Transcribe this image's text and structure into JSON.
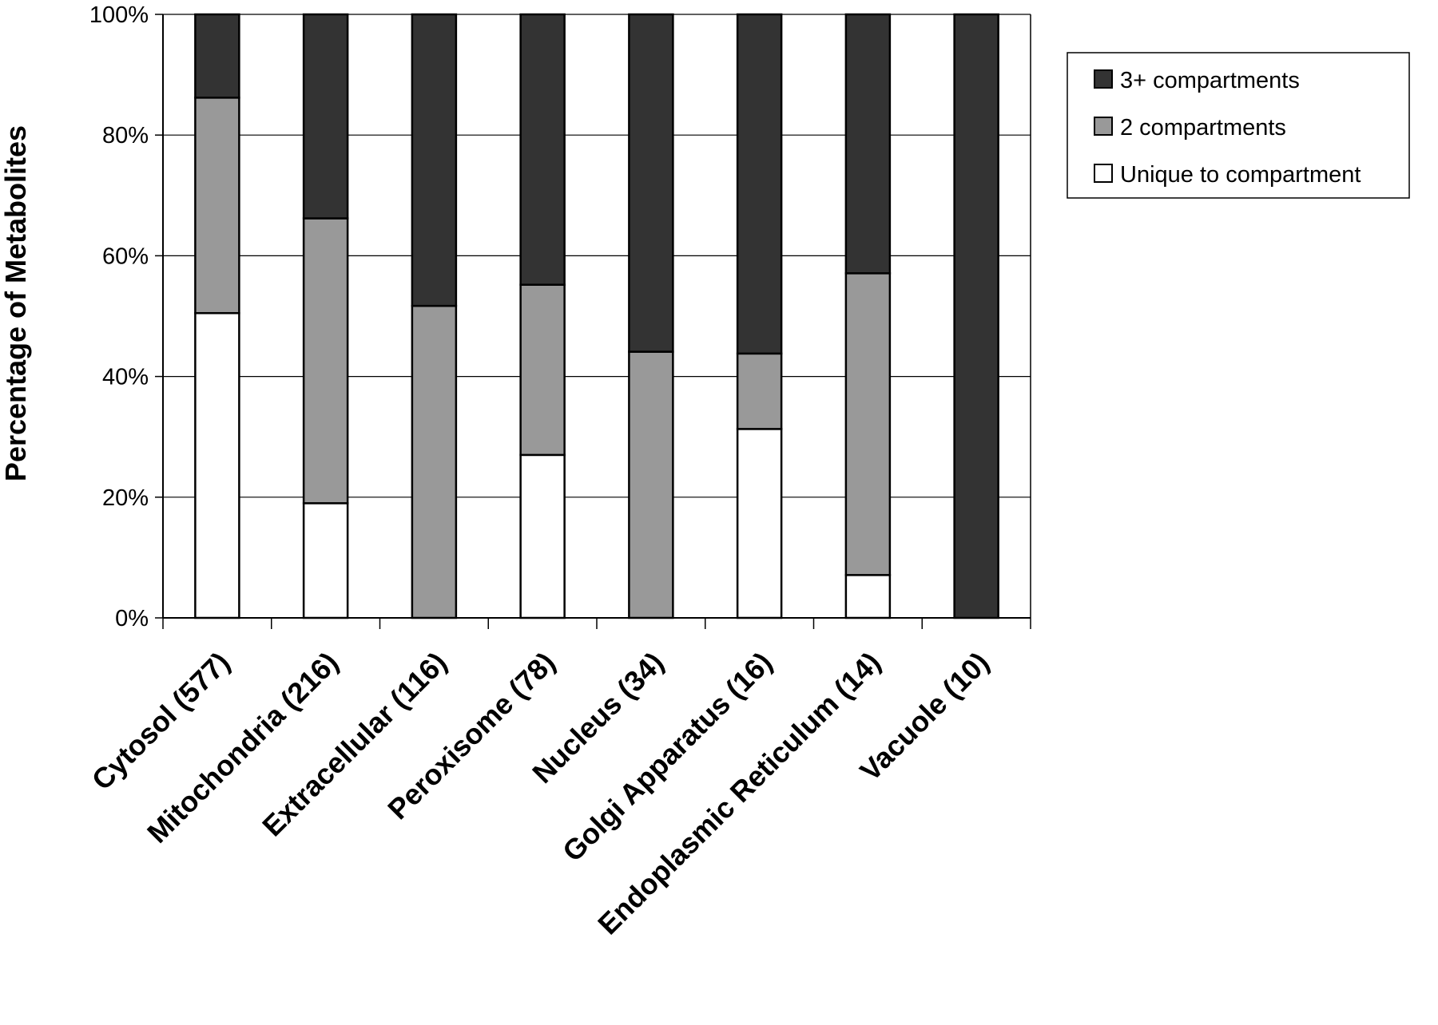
{
  "chart_data": {
    "type": "bar",
    "stacked": true,
    "title": "",
    "xlabel": "",
    "ylabel": "Percentage of Metabolites",
    "ylim": [
      0,
      100
    ],
    "yticks": [
      "0%",
      "20%",
      "40%",
      "60%",
      "80%",
      "100%"
    ],
    "grid": true,
    "legend_position": "top-right",
    "categories": [
      "Cytosol (577)",
      "Mitochondria (216)",
      "Extracellular (116)",
      "Peroxisome (78)",
      "Nucleus (34)",
      "Golgi Apparatus (16)",
      "Endoplasmic Reticulum (14)",
      "Vacuole (10)"
    ],
    "series": [
      {
        "name": "Unique to compartment",
        "color": "#ffffff",
        "values": [
          50.5,
          19,
          0,
          27,
          0,
          31.3,
          7.1,
          0
        ]
      },
      {
        "name": "2 compartments",
        "color": "#999999",
        "values": [
          35.7,
          47.2,
          51.7,
          28.2,
          44.1,
          12.5,
          50,
          0
        ]
      },
      {
        "name": "3+ compartments",
        "color": "#333333",
        "values": [
          13.8,
          33.8,
          48.3,
          44.8,
          55.9,
          56.2,
          42.9,
          100
        ]
      }
    ],
    "legend_order": [
      "3+ compartments",
      "2 compartments",
      "Unique to compartment"
    ]
  }
}
